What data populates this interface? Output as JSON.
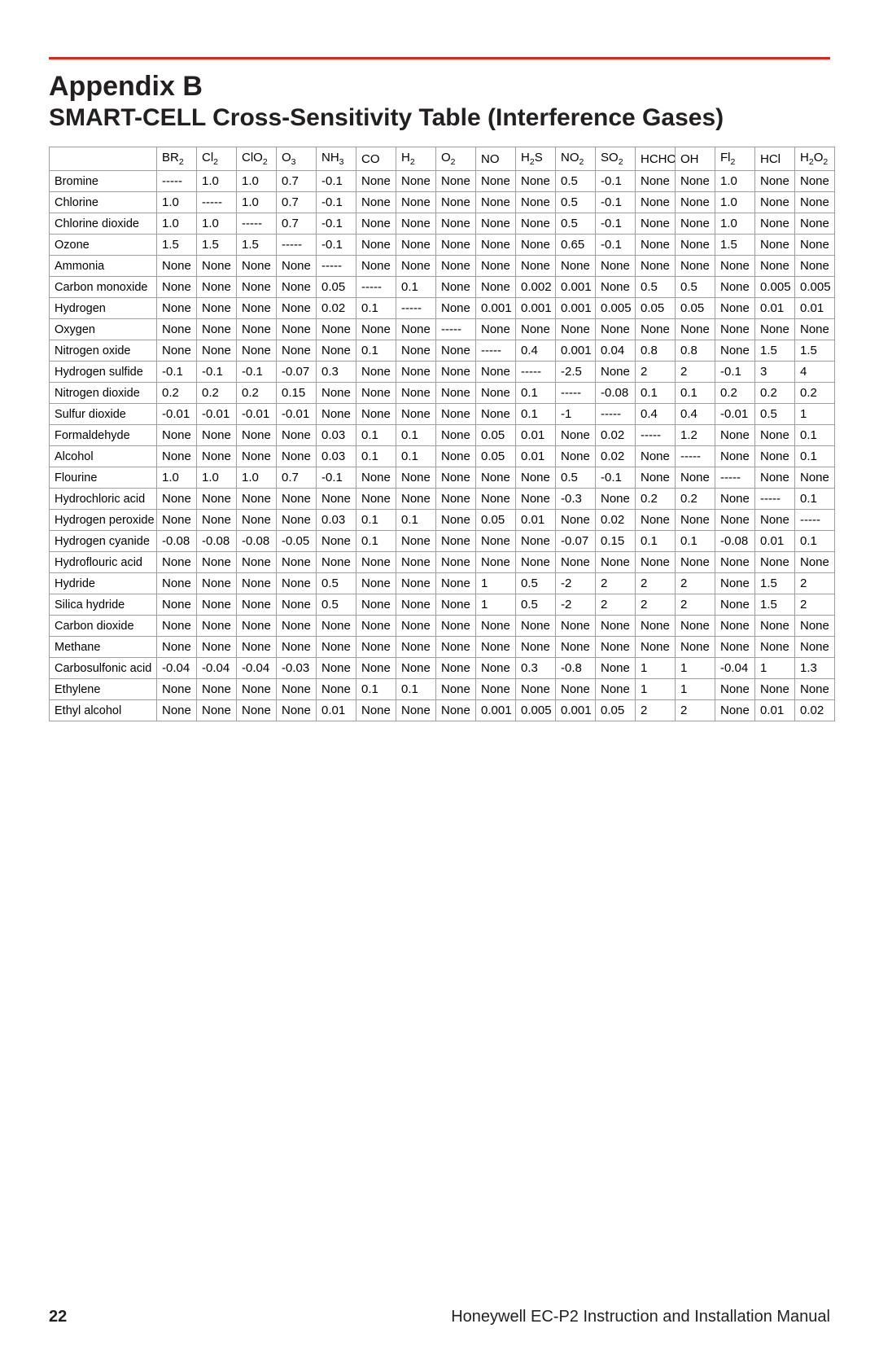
{
  "header": {
    "title": "Appendix B",
    "subtitle": "SMART-CELL Cross-Sensitivity Table (Interference Gases)"
  },
  "footer": {
    "page_number": "22",
    "doc_title": "Honeywell EC-P2 Instruction and Installation Manual"
  },
  "colors": {
    "rule": "#d9291c",
    "text": "#231f20",
    "grid": "#9d9d9d",
    "background": "#ffffff"
  },
  "table": {
    "columns": [
      {
        "key": "name",
        "label_html": ""
      },
      {
        "key": "BR2",
        "label_html": "BR<span class='sub'>2</span>"
      },
      {
        "key": "Cl2",
        "label_html": "Cl<span class='sub'>2</span>"
      },
      {
        "key": "ClO2",
        "label_html": "ClO<span class='sub'>2</span>"
      },
      {
        "key": "O3",
        "label_html": "O<span class='sub'>3</span>"
      },
      {
        "key": "NH3",
        "label_html": "NH<span class='sub'>3</span>"
      },
      {
        "key": "CO",
        "label_html": "CO"
      },
      {
        "key": "H2",
        "label_html": "H<span class='sub'>2</span>"
      },
      {
        "key": "O2",
        "label_html": "O<span class='sub'>2</span>"
      },
      {
        "key": "NO",
        "label_html": "NO"
      },
      {
        "key": "H2S",
        "label_html": "H<span class='sub'>2</span>S"
      },
      {
        "key": "NO2",
        "label_html": "NO<span class='sub'>2</span>"
      },
      {
        "key": "SO2",
        "label_html": "SO<span class='sub'>2</span>"
      },
      {
        "key": "HCHO",
        "label_html": "HCHO"
      },
      {
        "key": "OH",
        "label_html": "OH"
      },
      {
        "key": "Fl2",
        "label_html": "Fl<span class='sub'>2</span>"
      },
      {
        "key": "HCl",
        "label_html": "HCl"
      },
      {
        "key": "H2O2",
        "label_html": "H<span class='sub'>2</span>O<span class='sub'>2</span>"
      }
    ],
    "rows": [
      {
        "name": "Bromine",
        "BR2": "-----",
        "Cl2": "1.0",
        "ClO2": "1.0",
        "O3": "0.7",
        "NH3": "-0.1",
        "CO": "None",
        "H2": "None",
        "O2": "None",
        "NO": "None",
        "H2S": "None",
        "NO2": "0.5",
        "SO2": "-0.1",
        "HCHO": "None",
        "OH": "None",
        "Fl2": "1.0",
        "HCl": "None",
        "H2O2": "None"
      },
      {
        "name": "Chlorine",
        "BR2": "1.0",
        "Cl2": "-----",
        "ClO2": "1.0",
        "O3": "0.7",
        "NH3": "-0.1",
        "CO": "None",
        "H2": "None",
        "O2": "None",
        "NO": "None",
        "H2S": "None",
        "NO2": "0.5",
        "SO2": "-0.1",
        "HCHO": "None",
        "OH": "None",
        "Fl2": "1.0",
        "HCl": "None",
        "H2O2": "None"
      },
      {
        "name": "Chlorine dioxide",
        "BR2": "1.0",
        "Cl2": "1.0",
        "ClO2": "-----",
        "O3": "0.7",
        "NH3": "-0.1",
        "CO": "None",
        "H2": "None",
        "O2": "None",
        "NO": "None",
        "H2S": "None",
        "NO2": "0.5",
        "SO2": "-0.1",
        "HCHO": "None",
        "OH": "None",
        "Fl2": "1.0",
        "HCl": "None",
        "H2O2": "None"
      },
      {
        "name": "Ozone",
        "BR2": "1.5",
        "Cl2": "1.5",
        "ClO2": "1.5",
        "O3": "-----",
        "NH3": "-0.1",
        "CO": "None",
        "H2": "None",
        "O2": "None",
        "NO": "None",
        "H2S": "None",
        "NO2": "0.65",
        "SO2": "-0.1",
        "HCHO": "None",
        "OH": "None",
        "Fl2": "1.5",
        "HCl": "None",
        "H2O2": "None"
      },
      {
        "name": "Ammonia",
        "BR2": "None",
        "Cl2": "None",
        "ClO2": "None",
        "O3": "None",
        "NH3": "-----",
        "CO": "None",
        "H2": "None",
        "O2": "None",
        "NO": "None",
        "H2S": "None",
        "NO2": "None",
        "SO2": "None",
        "HCHO": "None",
        "OH": "None",
        "Fl2": "None",
        "HCl": "None",
        "H2O2": "None"
      },
      {
        "name": "Carbon monoxide",
        "BR2": "None",
        "Cl2": "None",
        "ClO2": "None",
        "O3": "None",
        "NH3": "0.05",
        "CO": "-----",
        "H2": "0.1",
        "O2": "None",
        "NO": "None",
        "H2S": "0.002",
        "NO2": "0.001",
        "SO2": "None",
        "HCHO": "0.5",
        "OH": "0.5",
        "Fl2": "None",
        "HCl": "0.005",
        "H2O2": "0.005"
      },
      {
        "name": "Hydrogen",
        "BR2": "None",
        "Cl2": "None",
        "ClO2": "None",
        "O3": "None",
        "NH3": "0.02",
        "CO": "0.1",
        "H2": "-----",
        "O2": "None",
        "NO": "0.001",
        "H2S": "0.001",
        "NO2": "0.001",
        "SO2": "0.005",
        "HCHO": "0.05",
        "OH": "0.05",
        "Fl2": "None",
        "HCl": "0.01",
        "H2O2": "0.01"
      },
      {
        "name": "Oxygen",
        "BR2": "None",
        "Cl2": "None",
        "ClO2": "None",
        "O3": "None",
        "NH3": "None",
        "CO": "None",
        "H2": "None",
        "O2": "-----",
        "NO": "None",
        "H2S": "None",
        "NO2": "None",
        "SO2": "None",
        "HCHO": "None",
        "OH": "None",
        "Fl2": "None",
        "HCl": "None",
        "H2O2": "None"
      },
      {
        "name": "Nitrogen oxide",
        "BR2": "None",
        "Cl2": "None",
        "ClO2": "None",
        "O3": "None",
        "NH3": "None",
        "CO": "0.1",
        "H2": "None",
        "O2": "None",
        "NO": "-----",
        "H2S": "0.4",
        "NO2": "0.001",
        "SO2": "0.04",
        "HCHO": "0.8",
        "OH": "0.8",
        "Fl2": "None",
        "HCl": "1.5",
        "H2O2": "1.5"
      },
      {
        "name": "Hydrogen sulfide",
        "BR2": "-0.1",
        "Cl2": "-0.1",
        "ClO2": "-0.1",
        "O3": "-0.07",
        "NH3": "0.3",
        "CO": "None",
        "H2": "None",
        "O2": "None",
        "NO": "None",
        "H2S": "-----",
        "NO2": "-2.5",
        "SO2": "None",
        "HCHO": "2",
        "OH": "2",
        "Fl2": "-0.1",
        "HCl": "3",
        "H2O2": "4"
      },
      {
        "name": "Nitrogen dioxide",
        "BR2": "0.2",
        "Cl2": "0.2",
        "ClO2": "0.2",
        "O3": "0.15",
        "NH3": "None",
        "CO": "None",
        "H2": "None",
        "O2": "None",
        "NO": "None",
        "H2S": "0.1",
        "NO2": "-----",
        "SO2": "-0.08",
        "HCHO": "0.1",
        "OH": "0.1",
        "Fl2": "0.2",
        "HCl": "0.2",
        "H2O2": "0.2"
      },
      {
        "name": "Sulfur dioxide",
        "BR2": "-0.01",
        "Cl2": "-0.01",
        "ClO2": "-0.01",
        "O3": "-0.01",
        "NH3": "None",
        "CO": "None",
        "H2": "None",
        "O2": "None",
        "NO": "None",
        "H2S": "0.1",
        "NO2": "-1",
        "SO2": "-----",
        "HCHO": "0.4",
        "OH": "0.4",
        "Fl2": "-0.01",
        "HCl": "0.5",
        "H2O2": "1"
      },
      {
        "name": "Formaldehyde",
        "BR2": "None",
        "Cl2": "None",
        "ClO2": "None",
        "O3": "None",
        "NH3": "0.03",
        "CO": "0.1",
        "H2": "0.1",
        "O2": "None",
        "NO": "0.05",
        "H2S": "0.01",
        "NO2": "None",
        "SO2": "0.02",
        "HCHO": "-----",
        "OH": "1.2",
        "Fl2": "None",
        "HCl": "None",
        "H2O2": "0.1"
      },
      {
        "name": "Alcohol",
        "BR2": "None",
        "Cl2": "None",
        "ClO2": "None",
        "O3": "None",
        "NH3": "0.03",
        "CO": "0.1",
        "H2": "0.1",
        "O2": "None",
        "NO": "0.05",
        "H2S": "0.01",
        "NO2": "None",
        "SO2": "0.02",
        "HCHO": "None",
        "OH": "-----",
        "Fl2": "None",
        "HCl": "None",
        "H2O2": "0.1"
      },
      {
        "name": "Flourine",
        "BR2": "1.0",
        "Cl2": "1.0",
        "ClO2": "1.0",
        "O3": "0.7",
        "NH3": "-0.1",
        "CO": "None",
        "H2": "None",
        "O2": "None",
        "NO": "None",
        "H2S": "None",
        "NO2": "0.5",
        "SO2": "-0.1",
        "HCHO": "None",
        "OH": "None",
        "Fl2": "-----",
        "HCl": "None",
        "H2O2": "None"
      },
      {
        "name": "Hydrochloric acid",
        "BR2": "None",
        "Cl2": "None",
        "ClO2": "None",
        "O3": "None",
        "NH3": "None",
        "CO": "None",
        "H2": "None",
        "O2": "None",
        "NO": "None",
        "H2S": "None",
        "NO2": "-0.3",
        "SO2": "None",
        "HCHO": "0.2",
        "OH": "0.2",
        "Fl2": "None",
        "HCl": "-----",
        "H2O2": "0.1"
      },
      {
        "name": "Hydrogen peroxide",
        "BR2": "None",
        "Cl2": "None",
        "ClO2": "None",
        "O3": "None",
        "NH3": "0.03",
        "CO": "0.1",
        "H2": "0.1",
        "O2": "None",
        "NO": "0.05",
        "H2S": "0.01",
        "NO2": "None",
        "SO2": "0.02",
        "HCHO": "None",
        "OH": "None",
        "Fl2": "None",
        "HCl": "None",
        "H2O2": "-----"
      },
      {
        "name": "Hydrogen cyanide",
        "BR2": "-0.08",
        "Cl2": "-0.08",
        "ClO2": "-0.08",
        "O3": "-0.05",
        "NH3": "None",
        "CO": "0.1",
        "H2": "None",
        "O2": "None",
        "NO": "None",
        "H2S": "None",
        "NO2": "-0.07",
        "SO2": "0.15",
        "HCHO": "0.1",
        "OH": "0.1",
        "Fl2": "-0.08",
        "HCl": "0.01",
        "H2O2": "0.1"
      },
      {
        "name": "Hydroflouric acid",
        "BR2": "None",
        "Cl2": "None",
        "ClO2": "None",
        "O3": "None",
        "NH3": "None",
        "CO": "None",
        "H2": "None",
        "O2": "None",
        "NO": "None",
        "H2S": "None",
        "NO2": "None",
        "SO2": "None",
        "HCHO": "None",
        "OH": "None",
        "Fl2": "None",
        "HCl": "None",
        "H2O2": "None"
      },
      {
        "name": "Hydride",
        "BR2": "None",
        "Cl2": "None",
        "ClO2": "None",
        "O3": "None",
        "NH3": "0.5",
        "CO": "None",
        "H2": "None",
        "O2": "None",
        "NO": "1",
        "H2S": "0.5",
        "NO2": "-2",
        "SO2": "2",
        "HCHO": "2",
        "OH": "2",
        "Fl2": "None",
        "HCl": "1.5",
        "H2O2": "2"
      },
      {
        "name": "Silica hydride",
        "BR2": "None",
        "Cl2": "None",
        "ClO2": "None",
        "O3": "None",
        "NH3": "0.5",
        "CO": "None",
        "H2": "None",
        "O2": "None",
        "NO": "1",
        "H2S": "0.5",
        "NO2": "-2",
        "SO2": "2",
        "HCHO": "2",
        "OH": "2",
        "Fl2": "None",
        "HCl": "1.5",
        "H2O2": "2"
      },
      {
        "name": "Carbon dioxide",
        "BR2": "None",
        "Cl2": "None",
        "ClO2": "None",
        "O3": "None",
        "NH3": "None",
        "CO": "None",
        "H2": "None",
        "O2": "None",
        "NO": "None",
        "H2S": "None",
        "NO2": "None",
        "SO2": "None",
        "HCHO": "None",
        "OH": "None",
        "Fl2": "None",
        "HCl": "None",
        "H2O2": "None"
      },
      {
        "name": "Methane",
        "BR2": "None",
        "Cl2": "None",
        "ClO2": "None",
        "O3": "None",
        "NH3": "None",
        "CO": "None",
        "H2": "None",
        "O2": "None",
        "NO": "None",
        "H2S": "None",
        "NO2": "None",
        "SO2": "None",
        "HCHO": "None",
        "OH": "None",
        "Fl2": "None",
        "HCl": "None",
        "H2O2": "None"
      },
      {
        "name": "Carbosulfonic acid",
        "BR2": "-0.04",
        "Cl2": "-0.04",
        "ClO2": "-0.04",
        "O3": "-0.03",
        "NH3": "None",
        "CO": "None",
        "H2": "None",
        "O2": "None",
        "NO": "None",
        "H2S": "0.3",
        "NO2": "-0.8",
        "SO2": "None",
        "HCHO": "1",
        "OH": "1",
        "Fl2": "-0.04",
        "HCl": "1",
        "H2O2": "1.3"
      },
      {
        "name": "Ethylene",
        "BR2": "None",
        "Cl2": "None",
        "ClO2": "None",
        "O3": "None",
        "NH3": "None",
        "CO": "0.1",
        "H2": "0.1",
        "O2": "None",
        "NO": "None",
        "H2S": "None",
        "NO2": "None",
        "SO2": "None",
        "HCHO": "1",
        "OH": "1",
        "Fl2": "None",
        "HCl": "None",
        "H2O2": "None"
      },
      {
        "name": "Ethyl alcohol",
        "BR2": "None",
        "Cl2": "None",
        "ClO2": "None",
        "O3": "None",
        "NH3": "0.01",
        "CO": "None",
        "H2": "None",
        "O2": "None",
        "NO": "0.001",
        "H2S": "0.005",
        "NO2": "0.001",
        "SO2": "0.05",
        "HCHO": "2",
        "OH": "2",
        "Fl2": "None",
        "HCl": "0.01",
        "H2O2": "0.02"
      }
    ]
  }
}
